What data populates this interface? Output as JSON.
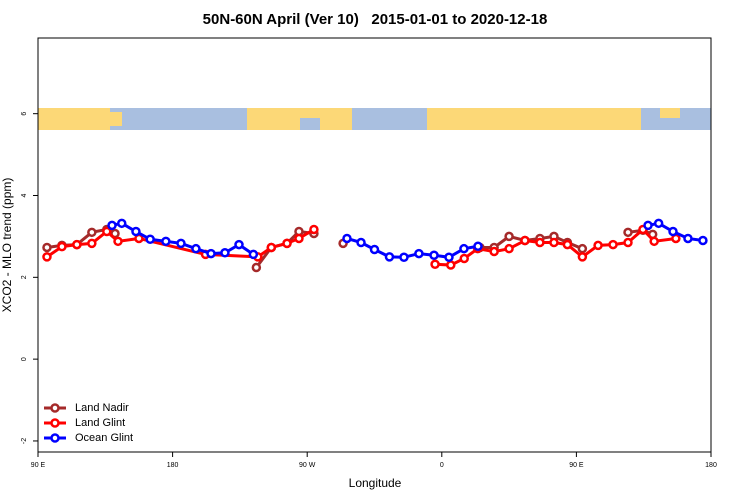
{
  "chart_data": {
    "type": "line",
    "title": "50N-60N April (Ver 10)   2015-01-01 to 2020-12-18",
    "x_label": "Longitude",
    "y_label": "XCO2 - MLO trend (ppm)",
    "xlim": [
      90,
      540
    ],
    "xticks": [
      {
        "value": 90,
        "label": "90 E"
      },
      180,
      {
        "value": 270,
        "label": "90 W"
      },
      {
        "value": 360,
        "label": "0"
      },
      {
        "value": 450,
        "label": "90 E"
      },
      {
        "value": 540,
        "label": "180"
      }
    ],
    "ylim": [
      -2.27,
      7.85
    ],
    "yticks": [
      -2,
      0,
      2,
      4,
      6
    ],
    "legend": "bottom-left",
    "series": [
      {
        "name": "Land Nadir",
        "color": "#a52a2a",
        "x": [
          96,
          106,
          116,
          126,
          136,
          141.5,
          190,
          236,
          246,
          256.5,
          264.5,
          274.5,
          285,
          294,
          340,
          385.5,
          395,
          405,
          415.6,
          425.6,
          435,
          444,
          454,
          470,
          484.5,
          494.5,
          501
        ],
        "values": [
          2.73,
          2.78,
          2.8,
          3.1,
          3.17,
          3.07,
          null,
          2.24,
          2.73,
          2.83,
          3.12,
          3.07,
          null,
          2.83,
          null,
          2.73,
          2.73,
          3.0,
          2.9,
          2.95,
          3.0,
          2.85,
          2.7,
          null,
          3.1,
          3.15,
          3.05
        ]
      },
      {
        "name": "Land Glint",
        "color": "#ff0000",
        "x": [
          96,
          106,
          116,
          126,
          136,
          143.5,
          157.5,
          202,
          237,
          246,
          256.5,
          264.5,
          274.5,
          315,
          355.5,
          366,
          375,
          384,
          395,
          405,
          415.6,
          425.6,
          435,
          444,
          454,
          464.5,
          474.5,
          484.5,
          494.5,
          502,
          516.5
        ],
        "values": [
          2.5,
          2.75,
          2.8,
          2.83,
          3.12,
          2.88,
          2.95,
          2.56,
          2.5,
          2.73,
          2.83,
          2.95,
          3.17,
          null,
          2.32,
          2.3,
          2.46,
          2.7,
          2.63,
          2.7,
          2.9,
          2.85,
          2.85,
          2.8,
          2.5,
          2.78,
          2.8,
          2.85,
          3.17,
          2.88,
          2.95
        ]
      },
      {
        "name": "Ocean Glint",
        "color": "#0000ff",
        "x": [
          139.5,
          146,
          155.5,
          165,
          175.5,
          185.6,
          195.6,
          205.7,
          215,
          224.4,
          234,
          265,
          296.6,
          306,
          315,
          325,
          334.7,
          344.7,
          354.8,
          364.8,
          374.8,
          384.2,
          440,
          497.9,
          505,
          514.6,
          524.6,
          534.6
        ],
        "values": [
          3.27,
          3.32,
          3.12,
          2.93,
          2.88,
          2.83,
          2.7,
          2.58,
          2.6,
          2.8,
          2.56,
          null,
          2.95,
          2.85,
          2.68,
          2.5,
          2.49,
          2.58,
          2.54,
          2.49,
          2.7,
          2.76,
          null,
          3.27,
          3.32,
          3.12,
          2.95,
          2.9
        ]
      }
    ]
  }
}
